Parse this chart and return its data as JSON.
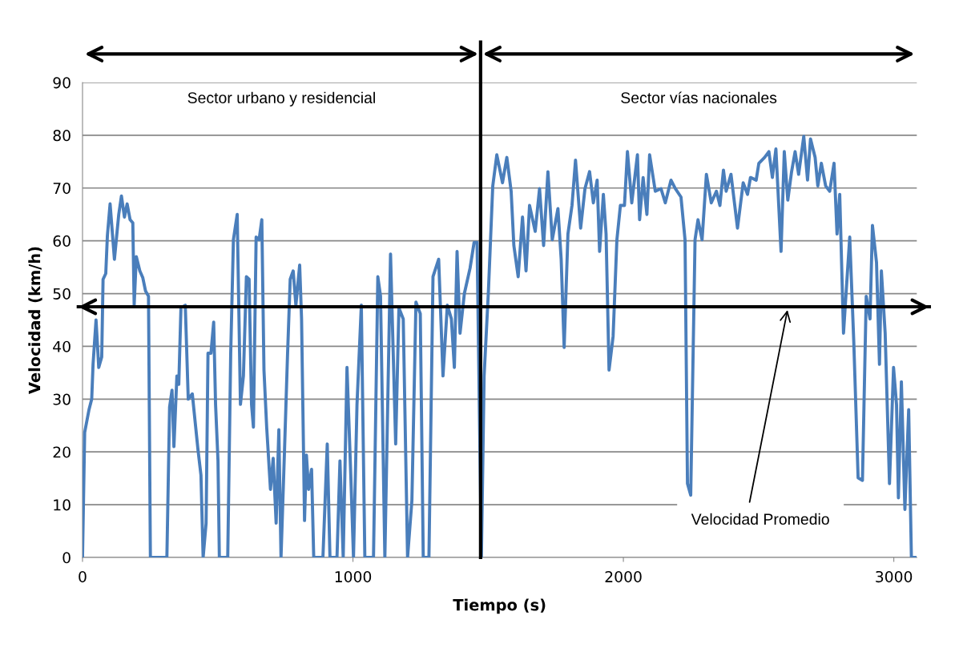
{
  "chart_data": {
    "type": "line",
    "xlabel": "Tiempo (s)",
    "ylabel": "Velocidad (km/h)",
    "xlim": [
      0,
      3085
    ],
    "xticks": [
      0,
      1000,
      2000,
      3000
    ],
    "ylim": [
      0,
      90
    ],
    "yticks": [
      0,
      10,
      20,
      30,
      40,
      50,
      60,
      70,
      80,
      90
    ],
    "grid": "y",
    "legend": false,
    "marker": "none",
    "line_style": "solid",
    "ref_lines": [
      {
        "axis": "x",
        "value": 1472,
        "color": "#000000"
      },
      {
        "axis": "y",
        "value": 47.5,
        "color": "#000000",
        "label": "Velocidad Promedio"
      }
    ],
    "annotations": [
      "Sector urbano y residencial",
      "Sector vías nacionales"
    ],
    "series": [
      {
        "color": "#4a7ebb",
        "x": [
          0,
          8,
          24,
          34,
          39,
          50,
          60,
          71,
          76,
          86,
          92,
          102,
          118,
          134,
          144,
          155,
          165,
          176,
          186,
          191,
          199,
          212,
          223,
          233,
          244,
          251,
          312,
          322,
          331,
          338,
          349,
          356,
          364,
          380,
          391,
          406,
          427,
          438,
          446,
          457,
          464,
          475,
          485,
          492,
          501,
          506,
          537,
          548,
          558,
          572,
          584,
          595,
          606,
          616,
          625,
          632,
          642,
          653,
          663,
          671,
          681,
          695,
          705,
          716,
          726,
          734,
          747,
          758,
          768,
          779,
          789,
          803,
          810,
          821,
          828,
          836,
          847,
          855,
          889,
          905,
          915,
          941,
          952,
          964,
          978,
          992,
          1002,
          1015,
          1031,
          1044,
          1076,
          1092,
          1102,
          1118,
          1139,
          1158,
          1170,
          1186,
          1202,
          1218,
          1233,
          1249,
          1260,
          1281,
          1296,
          1317,
          1333,
          1349,
          1364,
          1375,
          1385,
          1396,
          1412,
          1433,
          1448,
          1459,
          1475,
          1485,
          1501,
          1517,
          1532,
          1553,
          1569,
          1585,
          1595,
          1611,
          1627,
          1640,
          1653,
          1674,
          1690,
          1705,
          1721,
          1737,
          1758,
          1770,
          1781,
          1795,
          1810,
          1823,
          1842,
          1858,
          1875,
          1889,
          1903,
          1912,
          1926,
          1936,
          1947,
          1962,
          1976,
          1989,
          2004,
          2015,
          2031,
          2052,
          2060,
          2073,
          2087,
          2097,
          2118,
          2139,
          2155,
          2176,
          2192,
          2213,
          2228,
          2237,
          2249,
          2265,
          2276,
          2291,
          2307,
          2325,
          2344,
          2357,
          2370,
          2380,
          2398,
          2422,
          2443,
          2459,
          2470,
          2491,
          2501,
          2522,
          2538,
          2551,
          2564,
          2583,
          2595,
          2608,
          2622,
          2635,
          2648,
          2667,
          2681,
          2692,
          2709,
          2719,
          2732,
          2748,
          2763,
          2779,
          2790,
          2800,
          2814,
          2824,
          2837,
          2852,
          2868,
          2884,
          2898,
          2912,
          2921,
          2936,
          2947,
          2954,
          2968,
          2984,
          2999,
          3010,
          3017,
          3028,
          3041,
          3055,
          3065,
          3078
        ],
        "values": [
          0,
          23.7,
          28,
          30,
          36.6,
          45,
          36,
          38,
          52.7,
          53.8,
          61,
          67,
          56.5,
          65,
          68.5,
          64.5,
          67,
          64,
          63.4,
          47.8,
          57,
          54.3,
          53,
          50.5,
          49.5,
          0,
          0,
          28.5,
          31.7,
          21,
          34.4,
          32.8,
          47.3,
          47.8,
          30,
          31,
          20.4,
          15.6,
          0,
          6.5,
          38.7,
          38.7,
          44.6,
          29,
          18.3,
          0,
          0,
          38.7,
          60.2,
          65,
          29,
          34.4,
          53.2,
          52.7,
          29,
          24.7,
          60.7,
          60.2,
          64,
          35.5,
          24.7,
          12.9,
          18.8,
          6.5,
          24.2,
          0,
          20.4,
          38.2,
          52.7,
          54.3,
          47.8,
          55.4,
          45.2,
          7,
          19.4,
          12.9,
          16.7,
          0,
          0,
          21.5,
          0,
          0,
          18.3,
          0,
          36,
          15.6,
          0,
          29,
          47.8,
          0,
          0,
          53.2,
          49.5,
          0,
          57.5,
          21.5,
          47.3,
          45.2,
          0,
          10.8,
          48.4,
          46.2,
          0,
          0,
          53.2,
          56.5,
          34.4,
          47.8,
          45.2,
          36,
          58,
          42.5,
          50,
          54.8,
          59.7,
          59.7,
          0,
          34.4,
          50.5,
          70.4,
          76.3,
          71,
          75.8,
          69.4,
          59.1,
          53.2,
          64.5,
          54.3,
          66.7,
          61.8,
          69.9,
          59.1,
          73.1,
          60.2,
          66.1,
          56.5,
          39.8,
          61.3,
          66.7,
          75.3,
          62.4,
          69.9,
          73.1,
          67.2,
          71.5,
          58,
          68.8,
          61.3,
          35.5,
          41.9,
          60.2,
          66.7,
          66.7,
          76.9,
          67.2,
          76.3,
          64,
          72,
          65,
          76.3,
          69.4,
          69.9,
          67.2,
          71.5,
          69.9,
          68.3,
          60.2,
          14,
          11.8,
          60.2,
          64,
          60.2,
          72.6,
          67.2,
          69.4,
          66.7,
          73.4,
          69.4,
          72.6,
          62.4,
          71,
          68.8,
          72,
          71.5,
          74.7,
          75.8,
          76.9,
          72,
          77.4,
          58,
          76.9,
          67.7,
          73.1,
          76.9,
          72.6,
          79.8,
          71.5,
          79.3,
          75.8,
          70.4,
          74.7,
          70.4,
          69.4,
          74.7,
          61.3,
          68.8,
          42.5,
          50.5,
          60.7,
          40.8,
          15.1,
          14.6,
          49.5,
          45.2,
          62.9,
          55.9,
          36.6,
          54.3,
          42.5,
          14,
          36,
          29,
          11.3,
          33.3,
          9.1,
          28,
          0,
          0
        ]
      }
    ]
  }
}
